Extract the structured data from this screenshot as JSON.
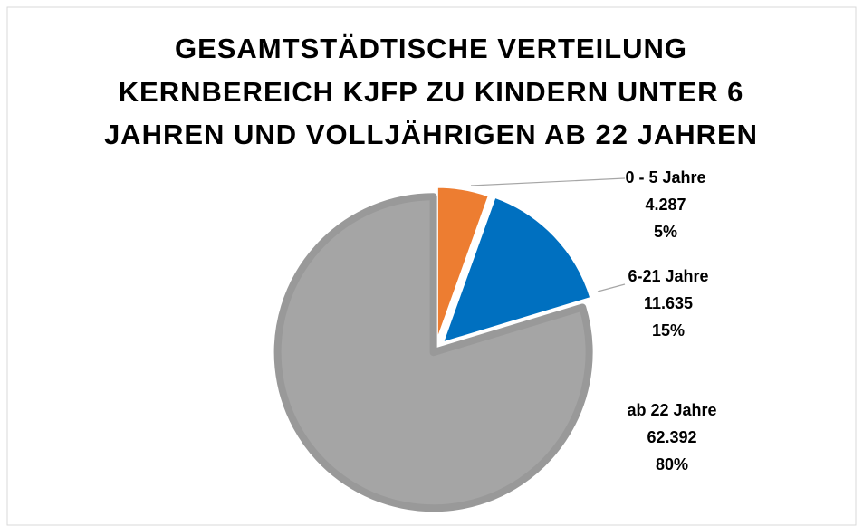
{
  "chart_data": {
    "type": "pie",
    "title_lines": [
      "GESAMTSTÄDTISCHE VERTEILUNG",
      "KERNBEREICH KJFP ZU KINDERN UNTER 6",
      "JAHREN UND VOLLJÄHRIGEN AB 22 JAHREN"
    ],
    "categories": [
      "0 - 5 Jahre",
      "6-21 Jahre",
      "ab 22 Jahre"
    ],
    "values": [
      4287,
      11635,
      62392
    ],
    "value_labels": [
      "4.287",
      "11.635",
      "62.392"
    ],
    "percent_labels": [
      "5%",
      "15%",
      "80%"
    ],
    "colors": [
      "#ed7d31",
      "#0070c0",
      "#a5a5a5"
    ]
  }
}
